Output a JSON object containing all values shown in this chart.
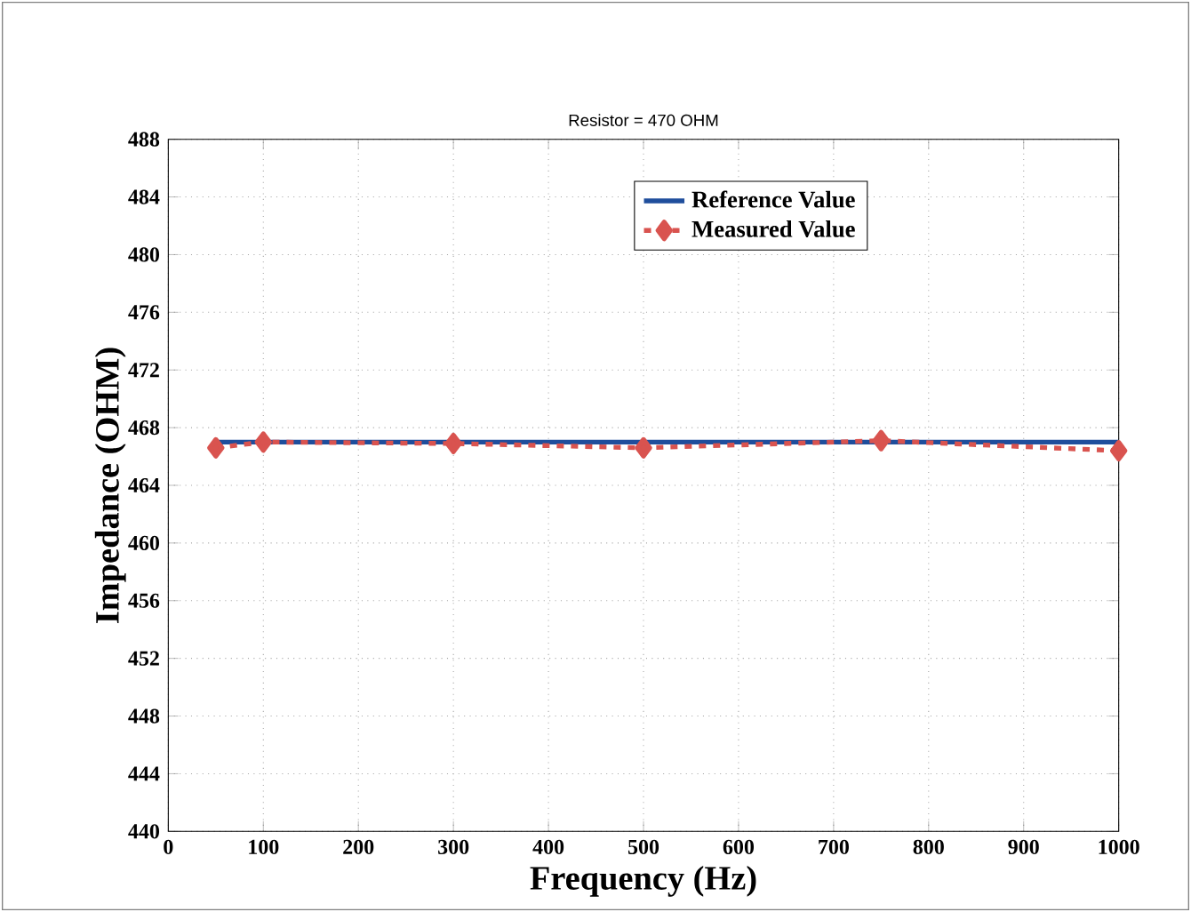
{
  "chart_data": {
    "type": "line",
    "title": "Resistor = 470 OHM",
    "xlabel": "Frequency (Hz)",
    "ylabel": "Impedance (OHM)",
    "xlim": [
      0,
      1000
    ],
    "xticks": [
      0,
      100,
      200,
      300,
      400,
      500,
      600,
      700,
      800,
      900,
      1000
    ],
    "ylim": [
      440,
      488
    ],
    "yticks": [
      440,
      444,
      448,
      452,
      456,
      460,
      464,
      468,
      472,
      476,
      480,
      484,
      488
    ],
    "grid": true,
    "legend": "top right",
    "series": [
      {
        "name": "Reference Value",
        "color": "#1f4e9c",
        "x": [
          50,
          1000
        ],
        "values": [
          467,
          467
        ],
        "line_style": "solid",
        "marker": "none"
      },
      {
        "name": "Measured Value",
        "color": "#d9534f",
        "x": [
          50,
          100,
          300,
          500,
          750,
          1000
        ],
        "values": [
          466.6,
          467.0,
          466.9,
          466.6,
          467.1,
          466.4
        ],
        "line_style": "dashed",
        "marker": "diamond"
      }
    ]
  }
}
